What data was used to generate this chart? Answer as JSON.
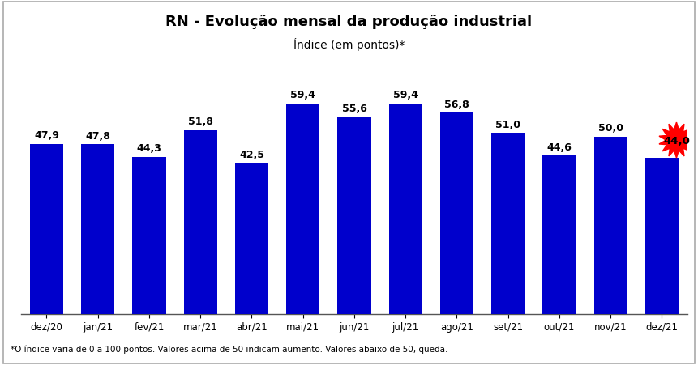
{
  "categories": [
    "dez/20",
    "jan/21",
    "fev/21",
    "mar/21",
    "abr/21",
    "mai/21",
    "jun/21",
    "jul/21",
    "ago/21",
    "set/21",
    "out/21",
    "nov/21",
    "dez/21"
  ],
  "values": [
    47.9,
    47.8,
    44.3,
    51.8,
    42.5,
    59.4,
    55.6,
    59.4,
    56.8,
    51.0,
    44.6,
    50.0,
    44.0
  ],
  "bar_color": "#0000cc",
  "title_line1": "RN - Evolução mensal da produção industrial",
  "title_line2": "Índice (em pontos)*",
  "footnote": "*O índice varia de 0 a 100 pontos. Valores acima de 50 indicam aumento. Valores abaixo de 50, queda.",
  "ylim": [
    0,
    70
  ],
  "background_color": "#ffffff",
  "plot_background": "#ffffff",
  "starburst_color": "#ff0000",
  "last_bar_index": 12,
  "border_color": "#aaaaaa"
}
